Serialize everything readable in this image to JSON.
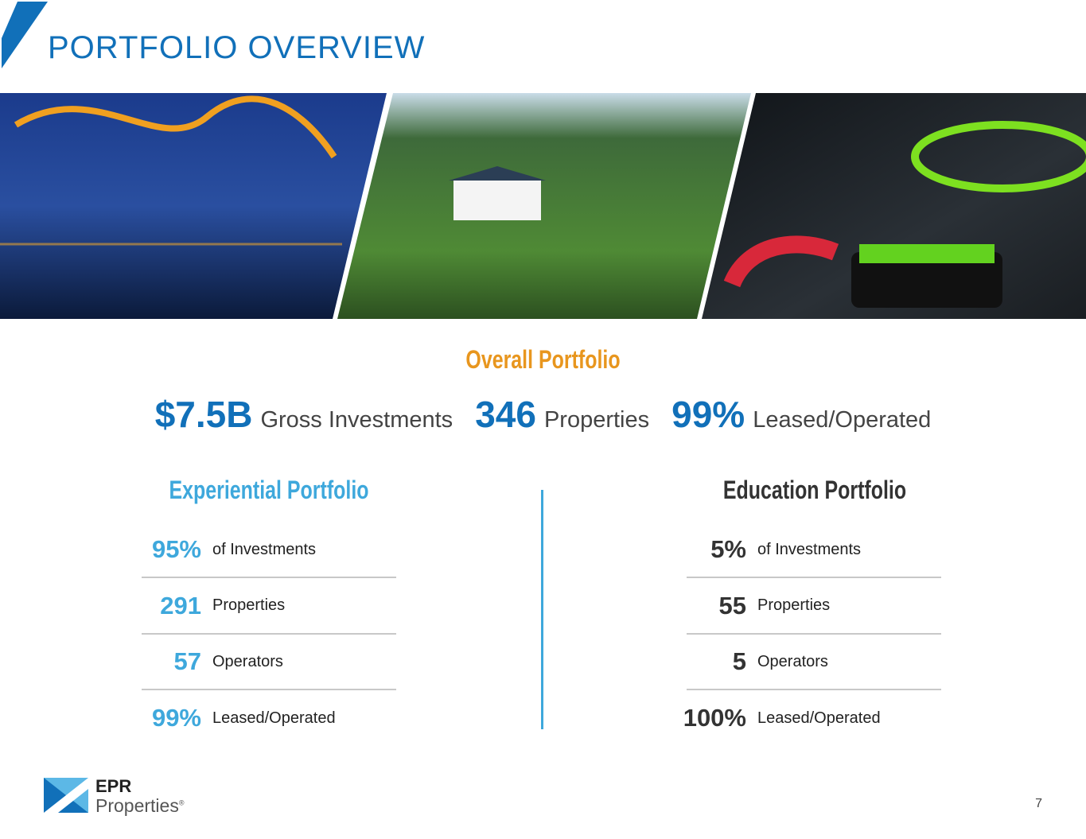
{
  "header": {
    "title": "PORTFOLIO OVERVIEW"
  },
  "overall": {
    "title": "Overall Portfolio",
    "stats": [
      {
        "value": "$7.5B",
        "label": "Gross Investments"
      },
      {
        "value": "346",
        "label": "Properties"
      },
      {
        "value": "99%",
        "label": "Leased/Operated"
      }
    ]
  },
  "experiential": {
    "title": "Experiential Portfolio",
    "stats": [
      {
        "value": "95%",
        "label": "of Investments"
      },
      {
        "value": "291",
        "label": "Properties"
      },
      {
        "value": "57",
        "label": "Operators"
      },
      {
        "value": "99%",
        "label": "Leased/Operated"
      }
    ]
  },
  "education": {
    "title": "Education Portfolio",
    "stats": [
      {
        "value": "5%",
        "label": "of Investments"
      },
      {
        "value": "55",
        "label": "Properties"
      },
      {
        "value": "5",
        "label": "Operators"
      },
      {
        "value": "100%",
        "label": "Leased/Operated"
      }
    ]
  },
  "footer": {
    "logo_top": "EPR",
    "logo_bottom": "Properties",
    "logo_mark": "®",
    "page": "7"
  }
}
